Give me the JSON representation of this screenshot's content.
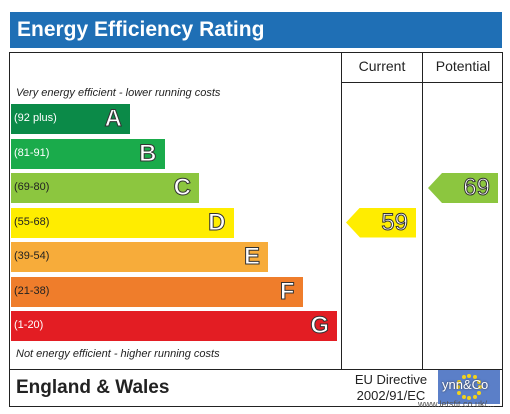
{
  "header": {
    "title": "Energy Efficiency Rating"
  },
  "columns": {
    "current": "Current",
    "potential": "Potential"
  },
  "notes": {
    "top": "Very energy efficient - lower running costs",
    "bottom": "Not energy efficient - higher running costs"
  },
  "chart_data": {
    "type": "bar",
    "title": "Energy Efficiency Rating",
    "bands": [
      {
        "letter": "A",
        "range": "(92 plus)",
        "min": 92,
        "max": 100,
        "color": "#0b8a48"
      },
      {
        "letter": "B",
        "range": "(81-91)",
        "min": 81,
        "max": 91,
        "color": "#1aab4b"
      },
      {
        "letter": "C",
        "range": "(69-80)",
        "min": 69,
        "max": 80,
        "color": "#8cc63f"
      },
      {
        "letter": "D",
        "range": "(55-68)",
        "min": 55,
        "max": 68,
        "color": "#ffed00"
      },
      {
        "letter": "E",
        "range": "(39-54)",
        "min": 39,
        "max": 54,
        "color": "#f7ac3a"
      },
      {
        "letter": "F",
        "range": "(21-38)",
        "min": 21,
        "max": 38,
        "color": "#ef7d2b"
      },
      {
        "letter": "G",
        "range": "(1-20)",
        "min": 1,
        "max": 20,
        "color": "#e31d23"
      }
    ],
    "current": {
      "label": "Current",
      "value": 59,
      "text": "59",
      "band": "D",
      "color": "#ffed00"
    },
    "potential": {
      "label": "Potential",
      "value": 69,
      "text": "69",
      "band": "C",
      "color": "#8cc63f"
    }
  },
  "footer": {
    "country": "England & Wales",
    "directive_line1": "EU Directive",
    "directive_line2": "2002/91/EC",
    "logo_text": "ynn&Co",
    "watermark": "www.letsfit.co.uk/...",
    "accent": "#1f6fb5"
  }
}
